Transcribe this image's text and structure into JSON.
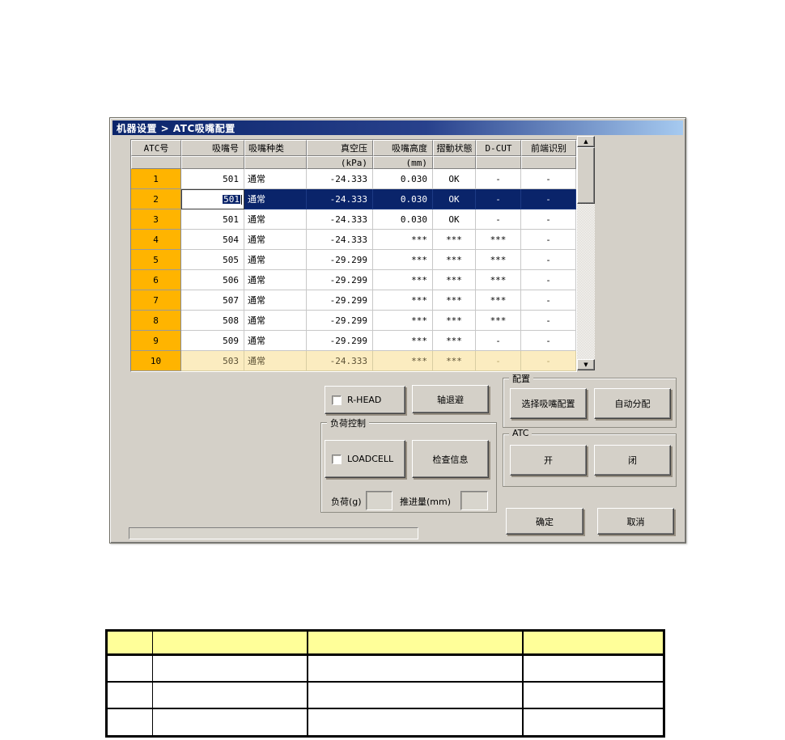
{
  "window": {
    "title": "机器设置 > ATC吸嘴配置",
    "colors": {
      "titlebar_start": "#0a246a",
      "titlebar_end": "#a6caf0",
      "face": "#d4d0c8",
      "selection": "#0a246a",
      "atc_cell": "#ffb400",
      "highlight_row": "#fbecc0"
    },
    "grid": {
      "headers": [
        "ATC号",
        "吸嘴号",
        "吸嘴种类",
        "真空压",
        "吸嘴高度",
        "摺動状態",
        "D-CUT",
        "前端识别"
      ],
      "units": [
        "",
        "",
        "",
        "(kPa)",
        "(mm)",
        "",
        "",
        ""
      ],
      "rows": [
        [
          "1",
          "501",
          "通常",
          "-24.333",
          "0.030",
          "OK",
          "-",
          "-"
        ],
        [
          "2",
          "501",
          "通常",
          "-24.333",
          "0.030",
          "OK",
          "-",
          "-"
        ],
        [
          "3",
          "501",
          "通常",
          "-24.333",
          "0.030",
          "OK",
          "-",
          "-"
        ],
        [
          "4",
          "504",
          "通常",
          "-24.333",
          "***",
          "***",
          "***",
          "-"
        ],
        [
          "5",
          "505",
          "通常",
          "-29.299",
          "***",
          "***",
          "***",
          "-"
        ],
        [
          "6",
          "506",
          "通常",
          "-29.299",
          "***",
          "***",
          "***",
          "-"
        ],
        [
          "7",
          "507",
          "通常",
          "-29.299",
          "***",
          "***",
          "***",
          "-"
        ],
        [
          "8",
          "508",
          "通常",
          "-29.299",
          "***",
          "***",
          "***",
          "-"
        ],
        [
          "9",
          "509",
          "通常",
          "-29.299",
          "***",
          "***",
          "-",
          "-"
        ],
        [
          "10",
          "503",
          "通常",
          "-24.333",
          "***",
          "***",
          "-",
          "-"
        ]
      ],
      "row_states": [
        "normal",
        "selected",
        "normal",
        "normal",
        "normal",
        "normal",
        "normal",
        "normal",
        "normal",
        "highlight"
      ],
      "edit_row": 1,
      "edit_col": 1,
      "edit_value": "501"
    },
    "scrollbar": {
      "up_icon": "▲",
      "down_icon": "▼"
    },
    "controls": {
      "rhead_label": "R-HEAD",
      "axis_retract": "轴退避",
      "load_group": "负荷控制",
      "loadcell_label": "LOADCELL",
      "check_info": "检查信息",
      "load_g_label": "负荷(g)",
      "load_g_value": "",
      "push_mm_label": "推进量(mm)",
      "push_mm_value": "",
      "config_group": "配置",
      "select_config": "选择吸嘴配置",
      "auto_assign": "自动分配",
      "atc_group": "ATC",
      "open_label": "开",
      "close_label": "闭",
      "ok_label": "确定",
      "cancel_label": "取消",
      "status_text": ""
    }
  },
  "bottom_table": {
    "header_bg": "#ffff99",
    "header": [
      "",
      "",
      "",
      ""
    ],
    "rows": [
      [
        "",
        "",
        "",
        ""
      ],
      [
        "",
        "",
        "",
        ""
      ],
      [
        "",
        "",
        "",
        ""
      ]
    ]
  }
}
